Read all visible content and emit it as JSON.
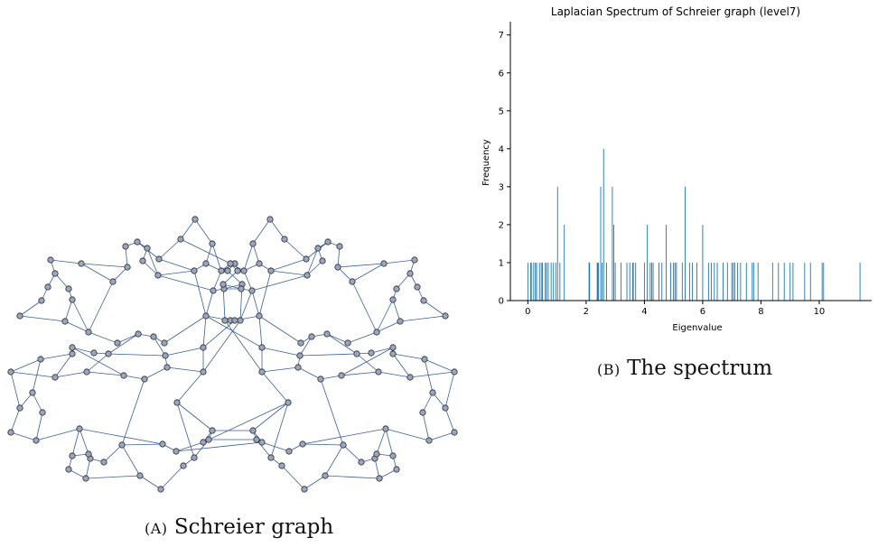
{
  "graph": {
    "caption_label": "(A)",
    "caption_text": "Schreier graph",
    "colors": {
      "node_fill": "#9aa5bf",
      "node_stroke": "#2b2b2b",
      "edge": "#3a5f94"
    }
  },
  "chart_data": {
    "type": "bar",
    "title": "Laplacian Spectrum of Schreier graph (level7)",
    "xlabel": "Eigenvalue",
    "ylabel": "Frequency",
    "xlim": [
      -0.6,
      11.8
    ],
    "ylim": [
      0,
      7.35
    ],
    "xticks": [
      0,
      2,
      4,
      6,
      8,
      10
    ],
    "yticks": [
      0,
      1,
      2,
      3,
      4,
      5,
      6,
      7
    ],
    "bar_color": "#1f77b4",
    "eigenvalues": [
      0.0,
      0.1,
      0.12,
      0.2,
      0.26,
      0.3,
      0.4,
      0.46,
      0.5,
      0.6,
      0.64,
      0.7,
      0.8,
      0.88,
      0.96,
      1.02,
      1.1,
      1.25,
      2.1,
      2.12,
      2.38,
      2.4,
      2.42,
      2.5,
      2.55,
      2.6,
      2.7,
      2.9,
      2.95,
      3.0,
      3.2,
      3.4,
      3.5,
      3.6,
      3.62,
      3.7,
      4.0,
      4.1,
      4.2,
      4.25,
      4.3,
      4.5,
      4.6,
      4.75,
      4.9,
      5.0,
      5.05,
      5.1,
      5.3,
      5.4,
      5.55,
      5.65,
      5.8,
      6.0,
      6.2,
      6.3,
      6.4,
      6.5,
      6.7,
      6.85,
      7.0,
      7.05,
      7.1,
      7.2,
      7.3,
      7.5,
      7.7,
      7.75,
      7.9,
      8.4,
      8.6,
      8.8,
      9.0,
      9.1,
      9.5,
      9.7,
      10.1,
      10.15,
      11.4
    ],
    "frequencies": [
      1,
      1,
      1,
      1,
      1,
      1,
      1,
      1,
      1,
      1,
      1,
      1,
      1,
      1,
      1,
      3,
      1,
      2,
      1,
      1,
      1,
      1,
      1,
      3,
      1,
      4,
      1,
      3,
      2,
      1,
      1,
      1,
      1,
      1,
      1,
      1,
      1,
      2,
      1,
      1,
      1,
      1,
      1,
      2,
      1,
      1,
      1,
      1,
      1,
      3,
      1,
      1,
      1,
      2,
      1,
      1,
      1,
      1,
      1,
      1,
      1,
      1,
      1,
      1,
      1,
      1,
      1,
      1,
      1,
      1,
      1,
      1,
      1,
      1,
      1,
      1,
      1,
      1,
      1
    ],
    "caption_label": "(B)",
    "caption_text": "The spectrum"
  }
}
